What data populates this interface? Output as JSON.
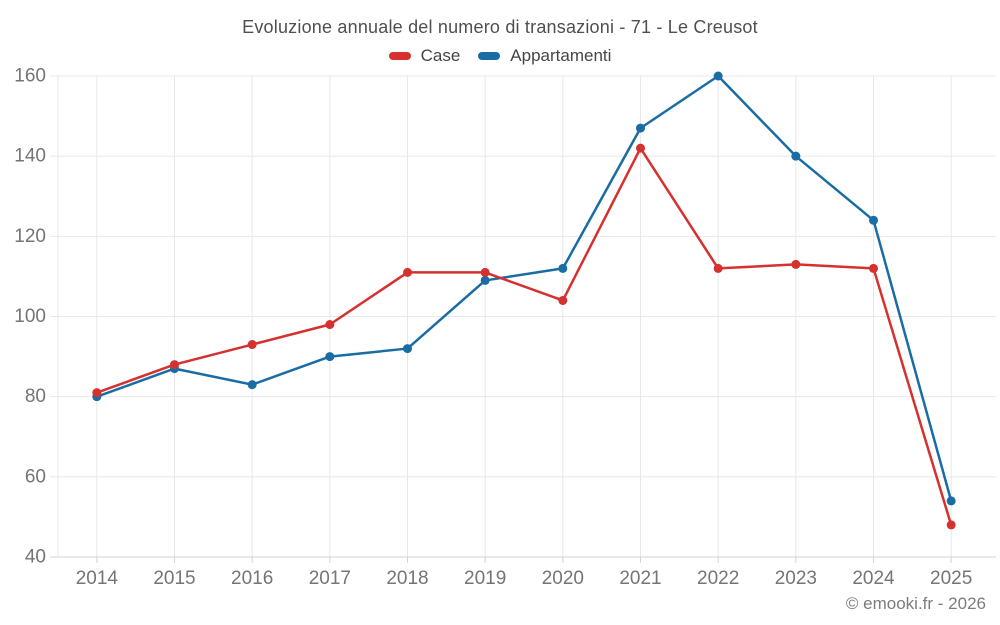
{
  "title": "Evoluzione annuale del numero di transazioni - 71 - Le Creusot",
  "legend": {
    "items": [
      {
        "label": "Case",
        "color": "#d5312f"
      },
      {
        "label": "Appartamenti",
        "color": "#1a6da4"
      }
    ]
  },
  "footer": {
    "credit": "© emooki.fr - 2026"
  },
  "colors": {
    "background": "#ffffff",
    "grid": "#e8e8e8",
    "axis": "#d4d4d4",
    "tick_text": "#757575",
    "title_text": "#4f4f4f",
    "legend_text": "#454545",
    "footer_text": "#7c7c7c"
  },
  "chart_data": {
    "type": "line",
    "title": "Evoluzione annuale del numero di transazioni - 71 - Le Creusot",
    "x": [
      "2014",
      "2015",
      "2016",
      "2017",
      "2018",
      "2019",
      "2020",
      "2021",
      "2022",
      "2023",
      "2024",
      "2025"
    ],
    "series": [
      {
        "name": "Case",
        "color": "#d5312f",
        "values": [
          81,
          88,
          93,
          98,
          111,
          111,
          104,
          142,
          112,
          113,
          112,
          48
        ]
      },
      {
        "name": "Appartamenti",
        "color": "#1a6da4",
        "values": [
          80,
          87,
          83,
          90,
          92,
          109,
          112,
          147,
          160,
          140,
          124,
          54
        ]
      }
    ],
    "xlabel": "",
    "ylabel": "",
    "ylim": [
      40,
      160
    ],
    "ytick_step": 20,
    "grid": true,
    "legend_position": "top",
    "markers": true,
    "marker_radius": 4.5,
    "line_width": 2.5
  }
}
